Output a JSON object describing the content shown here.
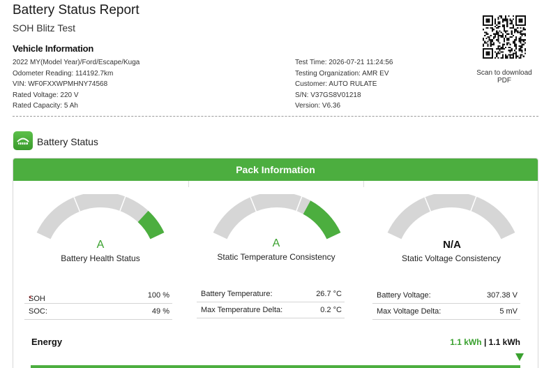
{
  "report": {
    "title": "Battery Status Report",
    "subtitle": "SOH Blitz Test",
    "vehicle_heading": "Vehicle Information"
  },
  "vehicle": {
    "left": [
      "2022 MY(Model Year)/Ford/Escape/Kuga",
      "Odometer Reading: 114192.7km",
      "VIN: WF0FXXWPMHNY74568",
      "Rated Voltage: 220 V",
      "Rated Capacity: 5 Ah"
    ],
    "right": [
      "Test Time: 2026-07-21 11:24:56",
      "Testing Organization: AMR EV",
      "Customer: AUTO RULATE",
      "S/N: V37GS8V01218",
      "Version: V6.36"
    ]
  },
  "qr": {
    "icon": "qr-code-icon",
    "caption_line1": "Scan to download",
    "caption_line2": "PDF"
  },
  "battery_status": {
    "icon": "battery-status-icon",
    "title": "Battery Status"
  },
  "pack": {
    "header": "Pack Information",
    "gauges": [
      {
        "grade": "A",
        "label": "Battery Health Status",
        "fill_start": 0.83,
        "fill_end": 1.0
      },
      {
        "grade": "A",
        "label": "Static Temperature Consistency",
        "fill_start": 0.72,
        "fill_end": 1.0
      },
      {
        "grade": "N/A",
        "label": "Static Voltage Consistency",
        "fill_start": 0,
        "fill_end": 0
      }
    ],
    "tables": [
      {
        "rows": [
          {
            "key": "SOH",
            "req": "*",
            "key_suffix": ":",
            "value": "100 %"
          },
          {
            "key": "SOC:",
            "req": "",
            "key_suffix": "",
            "value": "49 %"
          }
        ]
      },
      {
        "rows": [
          {
            "key": "Battery Temperature:",
            "req": "",
            "key_suffix": "",
            "value": "26.7 °C"
          },
          {
            "key": "Max Temperature Delta:",
            "req": "",
            "key_suffix": "",
            "value": "0.2 °C"
          }
        ]
      },
      {
        "rows": [
          {
            "key": "Battery Voltage:",
            "req": "",
            "key_suffix": "",
            "value": "307.38 V"
          },
          {
            "key": "Max Voltage Delta:",
            "req": "",
            "key_suffix": "",
            "value": "5 mV"
          }
        ]
      }
    ]
  },
  "energy": {
    "label": "Energy",
    "value_current": "1.1 kWh",
    "separator": "|",
    "value_total": "1.1 kWh",
    "level": 1.0
  },
  "colors": {
    "accent": "#4cae3f",
    "grade_green": "#3aa12f",
    "track_gray": "#d6d6d6",
    "required_red": "#d9262b"
  }
}
